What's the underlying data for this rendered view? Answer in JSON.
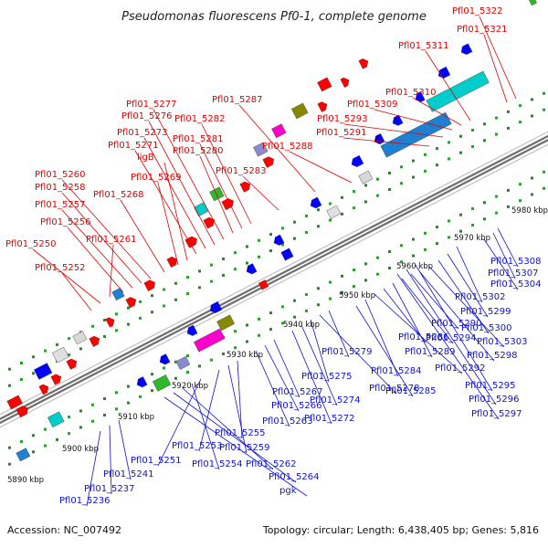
{
  "title": "Pseudomonas fluorescens Pf0-1, complete genome",
  "footer": {
    "accession": "Accession: NC_007492",
    "summary": "Topology: circular; Length: 6,438,405 bp; Genes: 5,816"
  },
  "colors": {
    "forward_label": "#e00000",
    "reverse_label": "#1010d0",
    "forward_feature": "#ff0000",
    "reverse_feature": "#0000ff"
  },
  "kbp_labels": [
    "5890 kbp",
    "5900 kbp",
    "5910 kbp",
    "5920 kbp",
    "5930 kbp",
    "5940 kbp",
    "5950 kbp",
    "5960 kbp",
    "5970 kbp",
    "5980 kbp"
  ],
  "forward_genes": [
    {
      "label": "Pfl01_5322"
    },
    {
      "label": "Pfl01_5321"
    },
    {
      "label": "Pfl01_5311"
    },
    {
      "label": "Pfl01_5310"
    },
    {
      "label": "Pfl01_5309"
    },
    {
      "label": "Pfl01_5293"
    },
    {
      "label": "Pfl01_5291"
    },
    {
      "label": "Pfl01_5288"
    },
    {
      "label": "Pfl01_5287"
    },
    {
      "label": "Pfl01_5283"
    },
    {
      "label": "Pfl01_5282"
    },
    {
      "label": "Pfl01_5281"
    },
    {
      "label": "Pfl01_5280"
    },
    {
      "label": "Pfl01_5277"
    },
    {
      "label": "Pfl01_5276"
    },
    {
      "label": "Pfl01_5273"
    },
    {
      "label": "Pfl01_5271"
    },
    {
      "label": "ligB"
    },
    {
      "label": "Pfl01_5269"
    },
    {
      "label": "Pfl01_5268"
    },
    {
      "label": "Pfl01_5260"
    },
    {
      "label": "Pfl01_5258"
    },
    {
      "label": "Pfl01_5257"
    },
    {
      "label": "Pfl01_5256"
    },
    {
      "label": "Pfl01_5261"
    },
    {
      "label": "Pfl01_5250"
    },
    {
      "label": "Pfl01_5252"
    }
  ],
  "reverse_genes": [
    {
      "label": "Pfl01_5308"
    },
    {
      "label": "Pfl01_5307"
    },
    {
      "label": "Pfl01_5304"
    },
    {
      "label": "Pfl01_5302"
    },
    {
      "label": "Pfl01_5299"
    },
    {
      "label": "Pfl01_5300"
    },
    {
      "label": "Pfl01_5303"
    },
    {
      "label": "Pfl01_5298"
    },
    {
      "label": "Pfl01_5290"
    },
    {
      "label": "Pfl01_5294"
    },
    {
      "label": "Pfl01_5289"
    },
    {
      "label": "Pfl01_5286"
    },
    {
      "label": "Pfl01_5292"
    },
    {
      "label": "Pfl01_5284"
    },
    {
      "label": "Pfl01_5285"
    },
    {
      "label": "Pfl01_5295"
    },
    {
      "label": "Pfl01_5296"
    },
    {
      "label": "Pfl01_5297"
    },
    {
      "label": "Pfl01_5279"
    },
    {
      "label": "Pfl01_5278"
    },
    {
      "label": "Pfl01_5275"
    },
    {
      "label": "Pfl01_5274"
    },
    {
      "label": "Pfl01_5272"
    },
    {
      "label": "Pfl01_5267"
    },
    {
      "label": "Pfl01_5266"
    },
    {
      "label": "Pfl01_5263"
    },
    {
      "label": "Pfl01_5255"
    },
    {
      "label": "Pfl01_5259"
    },
    {
      "label": "Pfl01_5253"
    },
    {
      "label": "Pfl01_5251"
    },
    {
      "label": "Pfl01_5254"
    },
    {
      "label": "Pfl01_5262"
    },
    {
      "label": "Pfl01_5264"
    },
    {
      "label": "pgk"
    },
    {
      "label": "Pfl01_5241"
    },
    {
      "label": "Pfl01_5237"
    },
    {
      "label": "Pfl01_5236"
    }
  ]
}
